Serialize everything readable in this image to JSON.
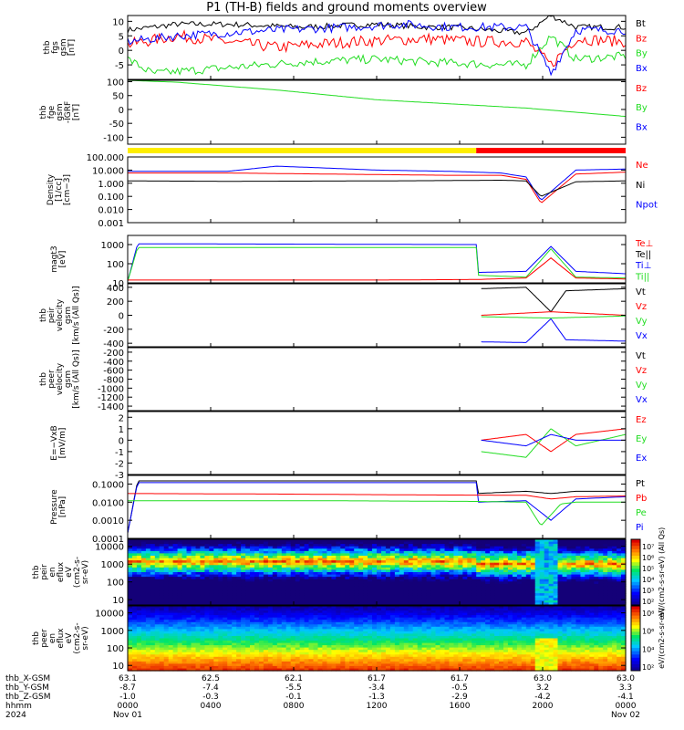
{
  "title": "P1 (TH-B) fields and ground moments overview",
  "colors": {
    "black": "#000000",
    "red": "#ff0000",
    "green": "#22dd22",
    "blue": "#0000ff",
    "yellow": "#ffee00"
  },
  "x_axis": {
    "row_labels": [
      "thb_X-GSM",
      "thb_Y-GSM",
      "thb_Z-GSM",
      "hhmm",
      "2024"
    ],
    "ticks": [
      {
        "x": "63.1",
        "y": "-8.7",
        "z": "-1.0",
        "hhmm": "0000",
        "date": "Nov 01"
      },
      {
        "x": "62.5",
        "y": "-7.4",
        "z": "-0.3",
        "hhmm": "0400",
        "date": ""
      },
      {
        "x": "62.1",
        "y": "-5.5",
        "z": "-0.1",
        "hhmm": "0800",
        "date": ""
      },
      {
        "x": "61.7",
        "y": "-3.4",
        "z": "-1.3",
        "hhmm": "1200",
        "date": ""
      },
      {
        "x": "61.7",
        "y": "-0.5",
        "z": "-2.9",
        "hhmm": "1600",
        "date": ""
      },
      {
        "x": "63.0",
        "y": "3.2",
        "z": "-4.2",
        "hhmm": "2000",
        "date": ""
      },
      {
        "x": "63.0",
        "y": "3.3",
        "z": "-4.1",
        "hhmm": "0000",
        "date": "Nov 02"
      }
    ]
  },
  "chart_data": [
    {
      "type": "line",
      "id": "fgs",
      "ylabel": "thb\nfgs\ngsm\n[nT]",
      "ylim": [
        -10,
        12
      ],
      "yticks": [
        "10",
        "5",
        "0",
        "-5"
      ],
      "ytick_vals": [
        10,
        5,
        0,
        -5
      ],
      "legend": [
        {
          "name": "Bt",
          "color": "black"
        },
        {
          "name": "Bz",
          "color": "red"
        },
        {
          "name": "By",
          "color": "green"
        },
        {
          "name": "Bx",
          "color": "blue"
        }
      ],
      "series": [
        {
          "name": "Bt",
          "color": "black",
          "x": [
            0,
            0.1,
            0.2,
            0.35,
            0.5,
            0.6,
            0.65,
            0.8,
            0.85,
            0.9,
            1
          ],
          "y": [
            7,
            9,
            9,
            8,
            9,
            8,
            8,
            6,
            12,
            8,
            8
          ],
          "noise": 1
        },
        {
          "name": "Bz",
          "color": "red",
          "x": [
            0,
            0.1,
            0.2,
            0.3,
            0.45,
            0.6,
            0.7,
            0.8,
            0.85,
            0.9,
            1
          ],
          "y": [
            2,
            5,
            3,
            1,
            3,
            4,
            3,
            3,
            -5,
            4,
            3
          ],
          "noise": 2
        },
        {
          "name": "By",
          "color": "green",
          "x": [
            0,
            0.05,
            0.2,
            0.35,
            0.5,
            0.6,
            0.75,
            0.8,
            0.85,
            0.9,
            1
          ],
          "y": [
            -3,
            -8,
            -6,
            -4,
            -3,
            -4,
            -5,
            -5,
            5,
            -3,
            -2
          ],
          "noise": 1.5
        },
        {
          "name": "Bx",
          "color": "blue",
          "x": [
            0,
            0.1,
            0.2,
            0.3,
            0.45,
            0.55,
            0.65,
            0.8,
            0.85,
            0.9,
            1
          ],
          "y": [
            3,
            5,
            6,
            7,
            8,
            9,
            8,
            8,
            -8,
            7,
            7
          ],
          "noise": 1.5
        }
      ]
    },
    {
      "type": "line",
      "id": "fge",
      "ylabel": "thb\nfge\ngsm\n-IGRF\n[nT]",
      "ylim": [
        -125,
        105
      ],
      "yticks": [
        "100",
        "50",
        "0",
        "-50",
        "-100"
      ],
      "ytick_vals": [
        100,
        50,
        0,
        -50,
        -100
      ],
      "legend": [
        {
          "name": "Bz",
          "color": "red"
        },
        {
          "name": "By",
          "color": "green"
        },
        {
          "name": "Bx",
          "color": "blue"
        }
      ],
      "series": [
        {
          "name": "By",
          "color": "green",
          "x": [
            0,
            0.1,
            0.3,
            0.5,
            0.7,
            0.8,
            0.9,
            1
          ],
          "y": [
            105,
            98,
            70,
            35,
            15,
            5,
            -10,
            -25
          ],
          "noise": 0
        }
      ]
    },
    {
      "type": "line",
      "id": "density",
      "ylabel": "Density\n[1/cc]\n[cm−3]",
      "ylim": [
        0.001,
        100
      ],
      "scale": "log",
      "yticks": [
        "100.000",
        "10.000",
        "1.000",
        "0.100",
        "0.010",
        "0.001"
      ],
      "ytick_vals": [
        100,
        10,
        1,
        0.1,
        0.01,
        0.001
      ],
      "legend": [
        {
          "name": "Ne",
          "color": "red"
        },
        {
          "name": "Ni",
          "color": "black"
        },
        {
          "name": "Npot",
          "color": "blue"
        }
      ],
      "series": [
        {
          "name": "Npot",
          "color": "blue",
          "x": [
            0,
            0.2,
            0.3,
            0.5,
            0.65,
            0.75,
            0.8,
            0.83,
            0.9,
            1
          ],
          "y": [
            8,
            8,
            20,
            10,
            8,
            6,
            3,
            0.05,
            10,
            12
          ],
          "noise": 0
        },
        {
          "name": "Ne",
          "color": "red",
          "x": [
            0,
            0.2,
            0.4,
            0.65,
            0.75,
            0.8,
            0.83,
            0.9,
            1
          ],
          "y": [
            6,
            6,
            5,
            4,
            4,
            2,
            0.03,
            5,
            7
          ],
          "noise": 0
        },
        {
          "name": "Ni",
          "color": "black",
          "x": [
            0,
            0.2,
            0.5,
            0.65,
            0.75,
            0.8,
            0.83,
            0.9,
            1
          ],
          "y": [
            1.5,
            1.4,
            1.5,
            1.6,
            1.7,
            1.5,
            0.1,
            1.3,
            1.5
          ],
          "noise": 0
        }
      ]
    },
    {
      "type": "line",
      "id": "temp",
      "ylabel": "magt3\n[eV]",
      "ylim": [
        10,
        3000
      ],
      "scale": "log",
      "yticks": [
        "1000",
        "100",
        "10"
      ],
      "ytick_vals": [
        1000,
        100,
        10
      ],
      "legend": [
        {
          "name": "Te⊥",
          "color": "red"
        },
        {
          "name": "Te||",
          "color": "black"
        },
        {
          "name": "Ti⊥",
          "color": "blue"
        },
        {
          "name": "Ti||",
          "color": "green"
        }
      ],
      "series": [
        {
          "name": "Ti⊥",
          "color": "blue",
          "x": [
            0,
            0.02,
            0.7,
            0.7,
            0.8,
            0.85,
            0.9,
            1
          ],
          "y": [
            12,
            1100,
            1000,
            35,
            40,
            800,
            40,
            30
          ],
          "noise": 0
        },
        {
          "name": "Ti||",
          "color": "green",
          "x": [
            0,
            0.02,
            0.7,
            0.7,
            0.8,
            0.85,
            0.9,
            1
          ],
          "y": [
            12,
            700,
            700,
            25,
            20,
            600,
            20,
            18
          ],
          "noise": 0
        },
        {
          "name": "Te⊥",
          "color": "red",
          "x": [
            0,
            0.2,
            0.5,
            0.7,
            0.8,
            0.85,
            0.9,
            1
          ],
          "y": [
            14,
            14,
            14,
            15,
            18,
            200,
            18,
            16
          ],
          "noise": 0
        }
      ]
    },
    {
      "type": "line",
      "id": "velocity",
      "ylabel": "thb\npeir\nvelocity\ngsm\n[km/s (All Qs)]",
      "ylim": [
        -450,
        450
      ],
      "yticks": [
        "400",
        "200",
        "0",
        "-200",
        "-400"
      ],
      "ytick_vals": [
        400,
        200,
        0,
        -200,
        -400
      ],
      "legend": [
        {
          "name": "Vt",
          "color": "black"
        },
        {
          "name": "Vz",
          "color": "red"
        },
        {
          "name": "Vy",
          "color": "green"
        },
        {
          "name": "Vx",
          "color": "blue"
        }
      ],
      "series": [
        {
          "name": "Vt",
          "color": "black",
          "x": [
            0.71,
            0.8,
            0.85,
            0.88,
            1
          ],
          "y": [
            380,
            400,
            50,
            350,
            380
          ],
          "noise": 0
        },
        {
          "name": "Vx",
          "color": "blue",
          "x": [
            0.71,
            0.8,
            0.85,
            0.88,
            1
          ],
          "y": [
            -380,
            -390,
            -50,
            -350,
            -370
          ],
          "noise": 0
        },
        {
          "name": "Vz",
          "color": "red",
          "x": [
            0.71,
            0.85,
            1
          ],
          "y": [
            0,
            50,
            0
          ],
          "noise": 0
        },
        {
          "name": "Vy",
          "color": "green",
          "x": [
            0.71,
            0.85,
            1
          ],
          "y": [
            -20,
            -40,
            -10
          ],
          "noise": 0
        }
      ]
    },
    {
      "type": "line",
      "id": "peer_velocity",
      "ylabel": "thb\npeer\nvelocity\ngsm\n[km/s (All Qs)]",
      "ylim": [
        -1500,
        -100
      ],
      "yticks": [
        "-200",
        "-400",
        "-600",
        "-800",
        "-1000",
        "-1200",
        "-1400"
      ],
      "ytick_vals": [
        -200,
        -400,
        -600,
        -800,
        -1000,
        -1200,
        -1400
      ],
      "legend": [
        {
          "name": "Vt",
          "color": "black"
        },
        {
          "name": "Vz",
          "color": "red"
        },
        {
          "name": "Vy",
          "color": "green"
        },
        {
          "name": "Vx",
          "color": "blue"
        }
      ],
      "series": []
    },
    {
      "type": "line",
      "id": "efield",
      "ylabel": "E=−VxB\n[mV/m]",
      "ylim": [
        -3,
        2.5
      ],
      "yticks": [
        "2",
        "1",
        "0",
        "-1",
        "-2",
        "-3"
      ],
      "ytick_vals": [
        2,
        1,
        0,
        -1,
        -2,
        -3
      ],
      "legend": [
        {
          "name": "Ez",
          "color": "red"
        },
        {
          "name": "Ey",
          "color": "green"
        },
        {
          "name": "Ex",
          "color": "blue"
        }
      ],
      "series": [
        {
          "name": "Ez",
          "color": "red",
          "x": [
            0.71,
            0.8,
            0.85,
            0.9,
            1
          ],
          "y": [
            0,
            0.5,
            -1,
            0.5,
            1
          ],
          "noise": 0
        },
        {
          "name": "Ey",
          "color": "green",
          "x": [
            0.71,
            0.8,
            0.85,
            0.9,
            1
          ],
          "y": [
            -1,
            -1.5,
            1,
            -0.5,
            0.5
          ],
          "noise": 0
        },
        {
          "name": "Ex",
          "color": "blue",
          "x": [
            0.71,
            0.8,
            0.85,
            0.9,
            1
          ],
          "y": [
            0,
            -0.5,
            0.5,
            0,
            0
          ],
          "noise": 0
        }
      ]
    },
    {
      "type": "line",
      "id": "pressure",
      "ylabel": "Pressure\n[nPa]",
      "ylim": [
        0.0001,
        0.3
      ],
      "scale": "log",
      "yticks": [
        "0.1000",
        "0.0100",
        "0.0010",
        "0.0001"
      ],
      "ytick_vals": [
        0.1,
        0.01,
        0.001,
        0.0001
      ],
      "legend": [
        {
          "name": "Pt",
          "color": "black"
        },
        {
          "name": "Pb",
          "color": "red"
        },
        {
          "name": "Pe",
          "color": "green"
        },
        {
          "name": "Pi",
          "color": "blue"
        }
      ],
      "series": [
        {
          "name": "Pt",
          "color": "black",
          "x": [
            0,
            0.02,
            0.7,
            0.7,
            0.8,
            0.85,
            0.9,
            1
          ],
          "y": [
            0.0002,
            0.15,
            0.15,
            0.03,
            0.04,
            0.03,
            0.04,
            0.04
          ],
          "noise": 0
        },
        {
          "name": "Pi",
          "color": "blue",
          "x": [
            0,
            0.02,
            0.7,
            0.7,
            0.8,
            0.85,
            0.9,
            1
          ],
          "y": [
            0.0002,
            0.12,
            0.12,
            0.01,
            0.012,
            0.001,
            0.015,
            0.02
          ],
          "noise": 0
        },
        {
          "name": "Pb",
          "color": "red",
          "x": [
            0,
            0.3,
            0.6,
            0.8,
            0.85,
            0.9,
            1
          ],
          "y": [
            0.03,
            0.028,
            0.025,
            0.024,
            0.015,
            0.02,
            0.022
          ],
          "noise": 0
        },
        {
          "name": "Pe",
          "color": "green",
          "x": [
            0,
            0.4,
            0.7,
            0.8,
            0.83,
            0.87,
            0.9,
            1
          ],
          "y": [
            0.012,
            0.012,
            0.011,
            0.01,
            0.0005,
            0.008,
            0.01,
            0.01
          ],
          "noise": 0
        }
      ]
    },
    {
      "type": "heatmap",
      "id": "peir",
      "ylabel": "thb\npeir\nen\neflux\neV\n(cm2-s-\nsr-eV)",
      "ylim": [
        5,
        25000
      ],
      "scale": "log",
      "yticks": [
        "10000",
        "1000",
        "100",
        "10"
      ],
      "ytick_vals": [
        10000,
        1000,
        100,
        10
      ],
      "colorbar_label": "eV/(cm2-s-sr-eV) (All Qs)",
      "colorbar_ticks": [
        "10⁷",
        "10⁶",
        "10⁵",
        "10⁴",
        "10³",
        "10²"
      ],
      "crange": [
        2,
        7
      ]
    },
    {
      "type": "heatmap",
      "id": "peer",
      "ylabel": "thb\npeer\nen\neflux\neV\n(cm2-s-\nsr-eV)",
      "ylim": [
        5,
        25000
      ],
      "scale": "log",
      "yticks": [
        "10000",
        "1000",
        "100",
        "10"
      ],
      "ytick_vals": [
        10000,
        1000,
        100,
        10
      ],
      "colorbar_label": "eV/(cm2-s-sr-eV)",
      "colorbar_ticks": [
        "10⁸",
        "10⁶",
        "10⁴",
        "10²"
      ],
      "crange": [
        1,
        9
      ]
    }
  ]
}
